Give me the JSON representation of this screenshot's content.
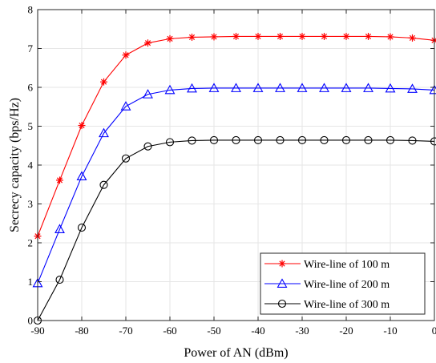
{
  "chart_data": {
    "type": "line",
    "title": "",
    "xlabel": "Power of AN (dBm)",
    "ylabel": "Secrecy capacity (bps/Hz)",
    "xlim": [
      -90,
      0
    ],
    "ylim": [
      0,
      8
    ],
    "xticks": [
      "-90",
      "-80",
      "-70",
      "-60",
      "-50",
      "-40",
      "-30",
      "-20",
      "-10",
      "0"
    ],
    "yticks": [
      "0",
      "1",
      "2",
      "3",
      "4",
      "5",
      "6",
      "7",
      "8"
    ],
    "grid": true,
    "legend_position": "bottom-right",
    "x": [
      -90,
      -85,
      -80,
      -75,
      -70,
      -65,
      -60,
      -55,
      -50,
      -45,
      -40,
      -35,
      -30,
      -25,
      -20,
      -15,
      -10,
      -5,
      0
    ],
    "series": [
      {
        "name": "Wire-line of 100 m",
        "color": "#ff0000",
        "marker": "asterisk",
        "values": [
          2.17,
          3.61,
          5.02,
          6.14,
          6.83,
          7.14,
          7.25,
          7.29,
          7.3,
          7.31,
          7.31,
          7.31,
          7.31,
          7.31,
          7.31,
          7.31,
          7.3,
          7.27,
          7.21
        ]
      },
      {
        "name": "Wire-line of 200 m",
        "color": "#0000ff",
        "marker": "triangle",
        "values": [
          0.96,
          2.35,
          3.71,
          4.82,
          5.51,
          5.82,
          5.93,
          5.97,
          5.98,
          5.98,
          5.98,
          5.98,
          5.98,
          5.98,
          5.98,
          5.98,
          5.97,
          5.96,
          5.93
        ]
      },
      {
        "name": "Wire-line of 300 m",
        "color": "#000000",
        "marker": "circle",
        "values": [
          0.0,
          1.05,
          2.39,
          3.49,
          4.17,
          4.48,
          4.59,
          4.63,
          4.64,
          4.64,
          4.64,
          4.64,
          4.64,
          4.64,
          4.64,
          4.64,
          4.64,
          4.63,
          4.61
        ]
      }
    ]
  }
}
